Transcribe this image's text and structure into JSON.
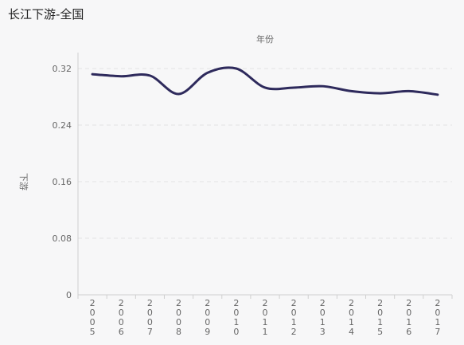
{
  "title": "长江下游-全国",
  "chart_data": {
    "type": "line",
    "title": "长江下游-全国",
    "xlabel": "年份",
    "ylabel": "下游",
    "categories": [
      "2005",
      "2006",
      "2007",
      "2008",
      "2009",
      "2010",
      "2011",
      "2012",
      "2013",
      "2014",
      "2015",
      "2016",
      "2017"
    ],
    "series": [
      {
        "values": [
          0.312,
          0.309,
          0.31,
          0.284,
          0.314,
          0.32,
          0.293,
          0.293,
          0.295,
          0.288,
          0.285,
          0.288,
          0.283
        ]
      }
    ],
    "ylim": [
      0,
      0.32
    ],
    "yticks": [
      "0",
      "0.08",
      "0.16",
      "0.24",
      "0.32"
    ],
    "grid": true,
    "color": "#2e2a5c"
  }
}
